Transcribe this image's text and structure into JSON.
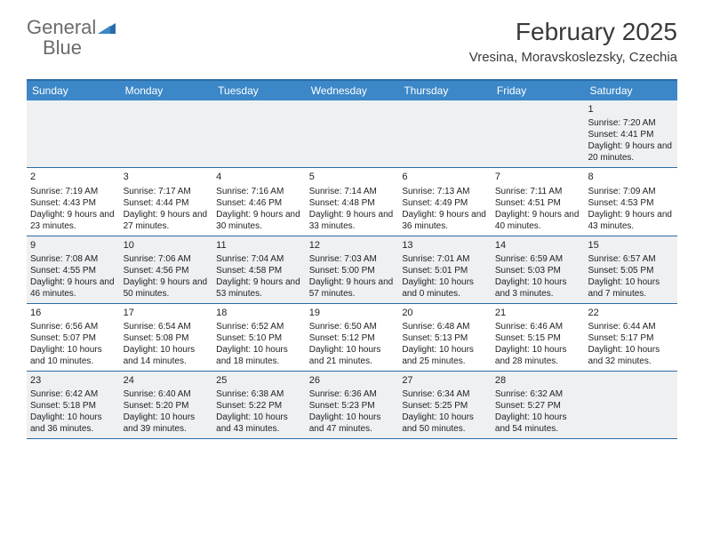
{
  "logo": {
    "text_gray": "General",
    "text_blue": "Blue"
  },
  "title": {
    "month": "February 2025",
    "location": "Vresina, Moravskoslezsky, Czechia"
  },
  "colors": {
    "header_bg": "#3b87c8",
    "header_border": "#2b6aa8",
    "shaded_bg": "#eef0f2",
    "logo_gray": "#6b6b6b",
    "logo_blue": "#3b7fc4",
    "text": "#222222"
  },
  "day_headers": [
    "Sunday",
    "Monday",
    "Tuesday",
    "Wednesday",
    "Thursday",
    "Friday",
    "Saturday"
  ],
  "weeks": [
    [
      {
        "num": "",
        "sunrise": "",
        "sunset": "",
        "daylight": ""
      },
      {
        "num": "",
        "sunrise": "",
        "sunset": "",
        "daylight": ""
      },
      {
        "num": "",
        "sunrise": "",
        "sunset": "",
        "daylight": ""
      },
      {
        "num": "",
        "sunrise": "",
        "sunset": "",
        "daylight": ""
      },
      {
        "num": "",
        "sunrise": "",
        "sunset": "",
        "daylight": ""
      },
      {
        "num": "",
        "sunrise": "",
        "sunset": "",
        "daylight": ""
      },
      {
        "num": "1",
        "sunrise": "Sunrise: 7:20 AM",
        "sunset": "Sunset: 4:41 PM",
        "daylight": "Daylight: 9 hours and 20 minutes."
      }
    ],
    [
      {
        "num": "2",
        "sunrise": "Sunrise: 7:19 AM",
        "sunset": "Sunset: 4:43 PM",
        "daylight": "Daylight: 9 hours and 23 minutes."
      },
      {
        "num": "3",
        "sunrise": "Sunrise: 7:17 AM",
        "sunset": "Sunset: 4:44 PM",
        "daylight": "Daylight: 9 hours and 27 minutes."
      },
      {
        "num": "4",
        "sunrise": "Sunrise: 7:16 AM",
        "sunset": "Sunset: 4:46 PM",
        "daylight": "Daylight: 9 hours and 30 minutes."
      },
      {
        "num": "5",
        "sunrise": "Sunrise: 7:14 AM",
        "sunset": "Sunset: 4:48 PM",
        "daylight": "Daylight: 9 hours and 33 minutes."
      },
      {
        "num": "6",
        "sunrise": "Sunrise: 7:13 AM",
        "sunset": "Sunset: 4:49 PM",
        "daylight": "Daylight: 9 hours and 36 minutes."
      },
      {
        "num": "7",
        "sunrise": "Sunrise: 7:11 AM",
        "sunset": "Sunset: 4:51 PM",
        "daylight": "Daylight: 9 hours and 40 minutes."
      },
      {
        "num": "8",
        "sunrise": "Sunrise: 7:09 AM",
        "sunset": "Sunset: 4:53 PM",
        "daylight": "Daylight: 9 hours and 43 minutes."
      }
    ],
    [
      {
        "num": "9",
        "sunrise": "Sunrise: 7:08 AM",
        "sunset": "Sunset: 4:55 PM",
        "daylight": "Daylight: 9 hours and 46 minutes."
      },
      {
        "num": "10",
        "sunrise": "Sunrise: 7:06 AM",
        "sunset": "Sunset: 4:56 PM",
        "daylight": "Daylight: 9 hours and 50 minutes."
      },
      {
        "num": "11",
        "sunrise": "Sunrise: 7:04 AM",
        "sunset": "Sunset: 4:58 PM",
        "daylight": "Daylight: 9 hours and 53 minutes."
      },
      {
        "num": "12",
        "sunrise": "Sunrise: 7:03 AM",
        "sunset": "Sunset: 5:00 PM",
        "daylight": "Daylight: 9 hours and 57 minutes."
      },
      {
        "num": "13",
        "sunrise": "Sunrise: 7:01 AM",
        "sunset": "Sunset: 5:01 PM",
        "daylight": "Daylight: 10 hours and 0 minutes."
      },
      {
        "num": "14",
        "sunrise": "Sunrise: 6:59 AM",
        "sunset": "Sunset: 5:03 PM",
        "daylight": "Daylight: 10 hours and 3 minutes."
      },
      {
        "num": "15",
        "sunrise": "Sunrise: 6:57 AM",
        "sunset": "Sunset: 5:05 PM",
        "daylight": "Daylight: 10 hours and 7 minutes."
      }
    ],
    [
      {
        "num": "16",
        "sunrise": "Sunrise: 6:56 AM",
        "sunset": "Sunset: 5:07 PM",
        "daylight": "Daylight: 10 hours and 10 minutes."
      },
      {
        "num": "17",
        "sunrise": "Sunrise: 6:54 AM",
        "sunset": "Sunset: 5:08 PM",
        "daylight": "Daylight: 10 hours and 14 minutes."
      },
      {
        "num": "18",
        "sunrise": "Sunrise: 6:52 AM",
        "sunset": "Sunset: 5:10 PM",
        "daylight": "Daylight: 10 hours and 18 minutes."
      },
      {
        "num": "19",
        "sunrise": "Sunrise: 6:50 AM",
        "sunset": "Sunset: 5:12 PM",
        "daylight": "Daylight: 10 hours and 21 minutes."
      },
      {
        "num": "20",
        "sunrise": "Sunrise: 6:48 AM",
        "sunset": "Sunset: 5:13 PM",
        "daylight": "Daylight: 10 hours and 25 minutes."
      },
      {
        "num": "21",
        "sunrise": "Sunrise: 6:46 AM",
        "sunset": "Sunset: 5:15 PM",
        "daylight": "Daylight: 10 hours and 28 minutes."
      },
      {
        "num": "22",
        "sunrise": "Sunrise: 6:44 AM",
        "sunset": "Sunset: 5:17 PM",
        "daylight": "Daylight: 10 hours and 32 minutes."
      }
    ],
    [
      {
        "num": "23",
        "sunrise": "Sunrise: 6:42 AM",
        "sunset": "Sunset: 5:18 PM",
        "daylight": "Daylight: 10 hours and 36 minutes."
      },
      {
        "num": "24",
        "sunrise": "Sunrise: 6:40 AM",
        "sunset": "Sunset: 5:20 PM",
        "daylight": "Daylight: 10 hours and 39 minutes."
      },
      {
        "num": "25",
        "sunrise": "Sunrise: 6:38 AM",
        "sunset": "Sunset: 5:22 PM",
        "daylight": "Daylight: 10 hours and 43 minutes."
      },
      {
        "num": "26",
        "sunrise": "Sunrise: 6:36 AM",
        "sunset": "Sunset: 5:23 PM",
        "daylight": "Daylight: 10 hours and 47 minutes."
      },
      {
        "num": "27",
        "sunrise": "Sunrise: 6:34 AM",
        "sunset": "Sunset: 5:25 PM",
        "daylight": "Daylight: 10 hours and 50 minutes."
      },
      {
        "num": "28",
        "sunrise": "Sunrise: 6:32 AM",
        "sunset": "Sunset: 5:27 PM",
        "daylight": "Daylight: 10 hours and 54 minutes."
      },
      {
        "num": "",
        "sunrise": "",
        "sunset": "",
        "daylight": ""
      }
    ]
  ]
}
